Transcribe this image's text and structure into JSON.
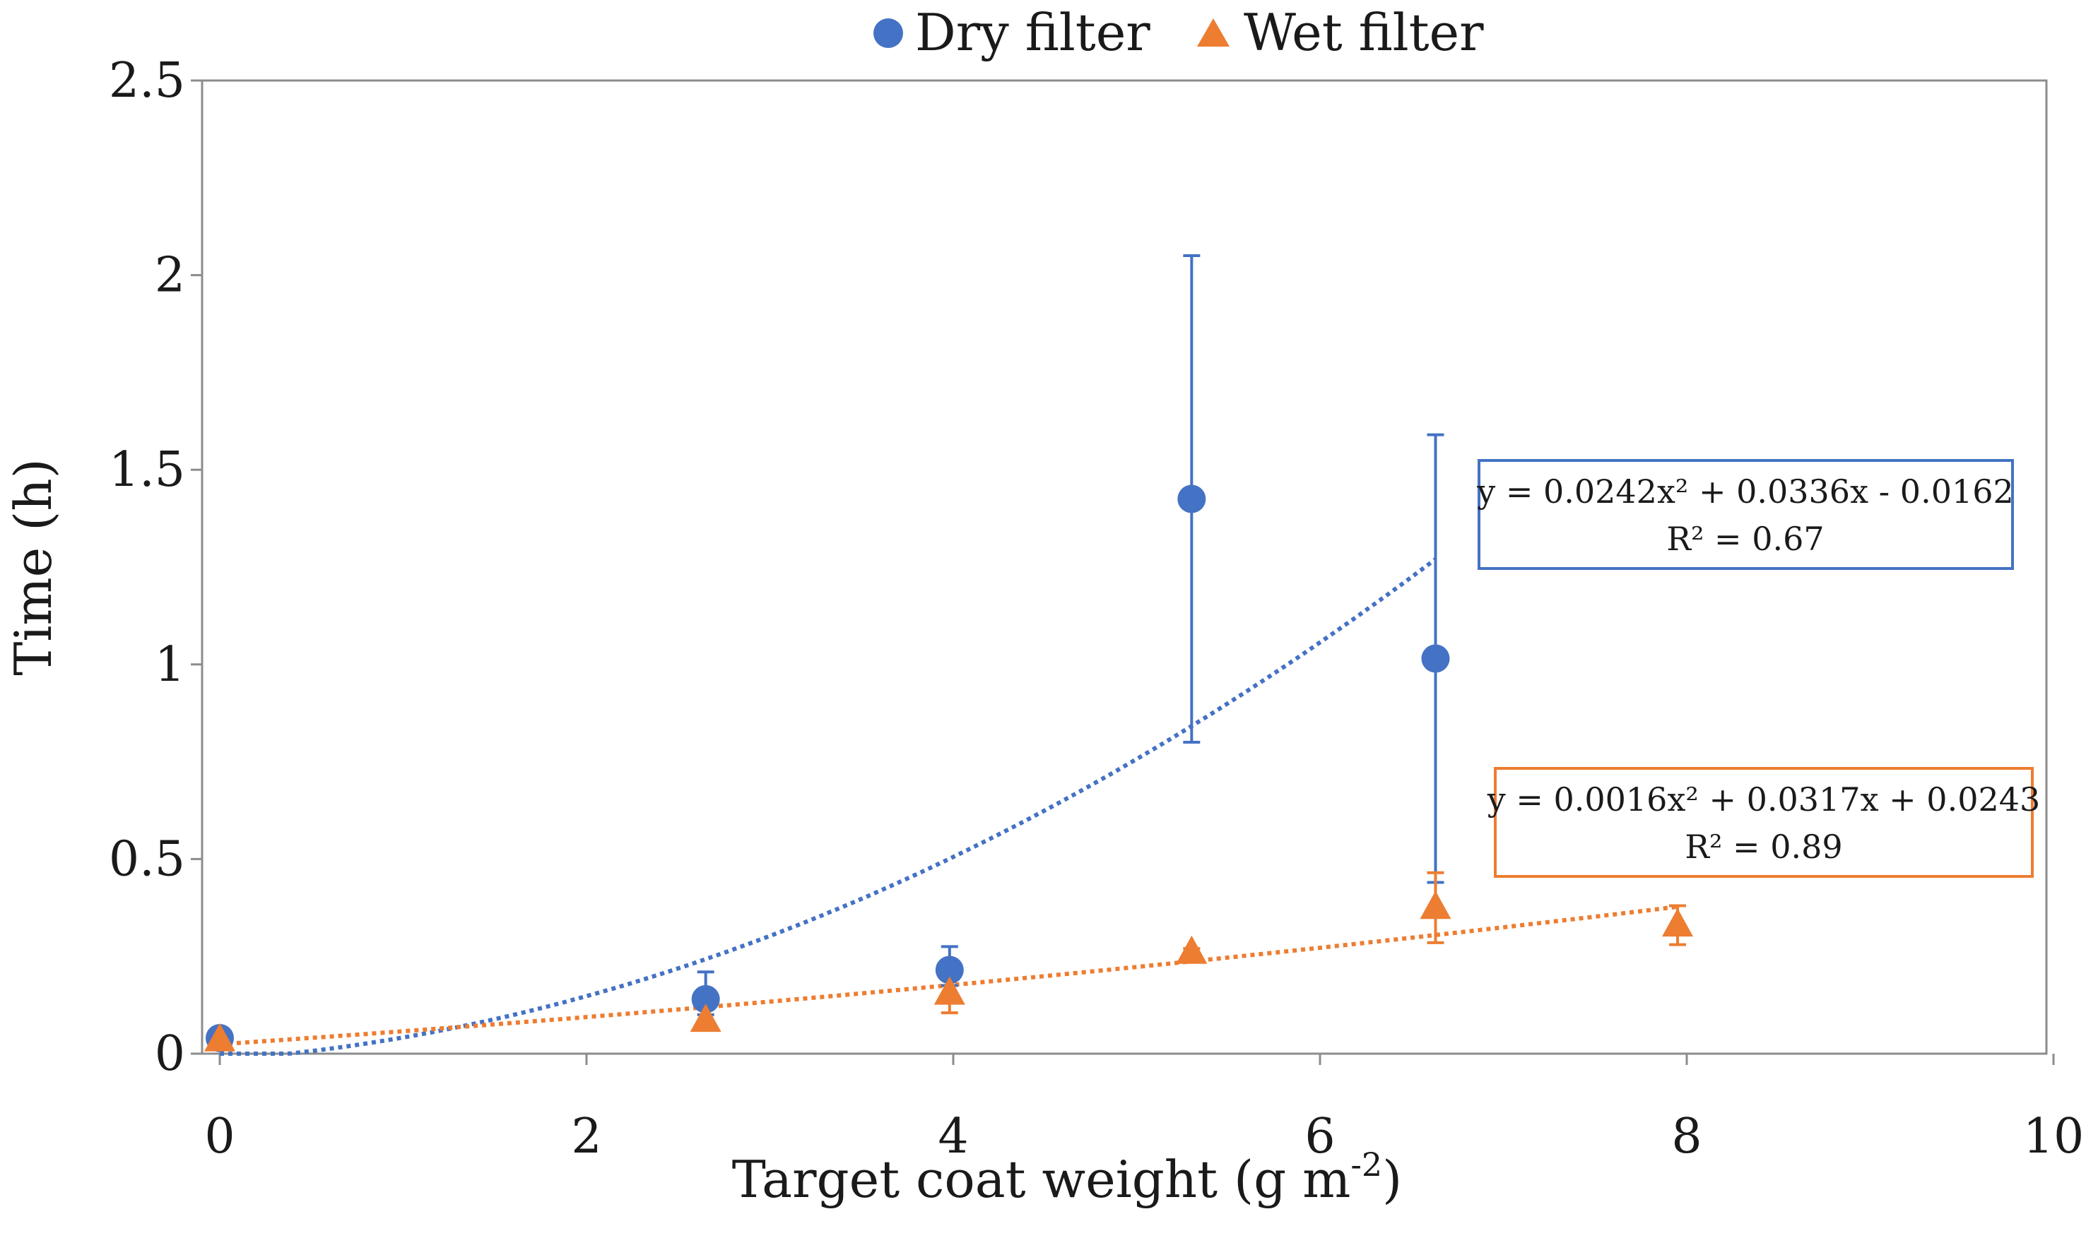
{
  "chart_data": {
    "type": "scatter",
    "title": "",
    "xlabel": "Target coat weight (g m",
    "xlabel_sup": "-2",
    "xlabel_end": ")",
    "ylabel": "Time (h)",
    "xlim": [
      0,
      10
    ],
    "ylim": [
      0,
      2.5
    ],
    "x_ticks": [
      0,
      2,
      4,
      6,
      8,
      10
    ],
    "y_ticks": [
      0,
      0.5,
      1,
      1.5,
      2,
      2.5
    ],
    "x_tick_labels": [
      "0",
      "2",
      "4",
      "6",
      "8",
      "10"
    ],
    "y_tick_labels": [
      "0",
      "0.5",
      "1",
      "1.5",
      "2",
      "2.5"
    ],
    "grid": false,
    "legend_position": "top-center",
    "series": [
      {
        "name": "Dry filter",
        "marker": "circle",
        "color": "#4472C4",
        "points": [
          {
            "x": 0,
            "y": 0.04,
            "err_low": 0,
            "err_high": 0
          },
          {
            "x": 2.65,
            "y": 0.14,
            "err_low": 0.04,
            "err_high": 0.07
          },
          {
            "x": 3.98,
            "y": 0.215,
            "err_low": 0.04,
            "err_high": 0.06
          },
          {
            "x": 5.3,
            "y": 1.425,
            "err_low": 0.625,
            "err_high": 0.625
          },
          {
            "x": 6.63,
            "y": 1.015,
            "err_low": 0.575,
            "err_high": 0.575
          }
        ],
        "trendline": {
          "type": "polynomial",
          "coefficients": [
            0.0242,
            0.0336,
            -0.0162
          ],
          "x_range": [
            0,
            6.63
          ],
          "equation": "y = 0.0242x² + 0.0336x - 0.0162",
          "r2": "R² = 0.67"
        }
      },
      {
        "name": "Wet filter",
        "marker": "triangle",
        "color": "#ED7D31",
        "points": [
          {
            "x": 0,
            "y": 0.035,
            "err_low": 0,
            "err_high": 0
          },
          {
            "x": 2.65,
            "y": 0.085,
            "err_low": 0,
            "err_high": 0
          },
          {
            "x": 3.98,
            "y": 0.155,
            "err_low": 0.05,
            "err_high": 0.05
          },
          {
            "x": 5.3,
            "y": 0.26,
            "err_low": 0.01,
            "err_high": 0.01
          },
          {
            "x": 6.63,
            "y": 0.375,
            "err_low": 0.09,
            "err_high": 0.09
          },
          {
            "x": 7.95,
            "y": 0.33,
            "err_low": 0.05,
            "err_high": 0.05
          }
        ],
        "trendline": {
          "type": "polynomial",
          "coefficients": [
            0.0016,
            0.0317,
            0.0243
          ],
          "x_range": [
            0,
            7.95
          ],
          "equation": "y = 0.0016x² + 0.0317x + 0.0243",
          "r2": "R² = 0.89"
        }
      }
    ]
  }
}
